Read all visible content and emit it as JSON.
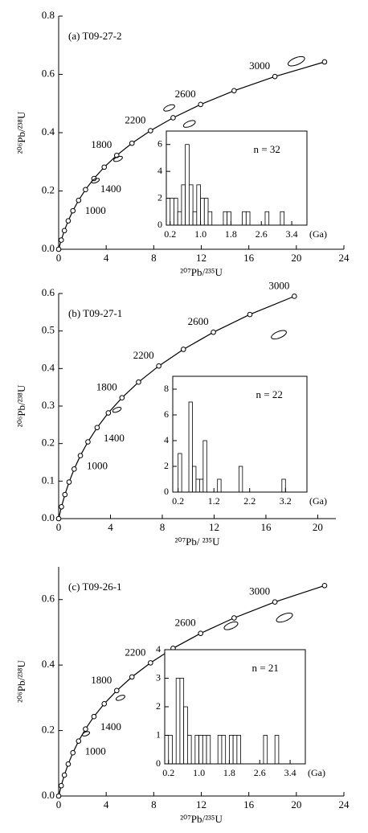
{
  "chart_data": [
    {
      "type": "concordia",
      "title": "(a) T09-27-2",
      "xlabel": "²⁰⁷Pb/²³⁵U",
      "ylabel": "²⁰⁶Pb/²³⁸U",
      "xlim": [
        0,
        24
      ],
      "ylim": [
        0,
        0.8
      ],
      "xticks": [
        0,
        4,
        8,
        12,
        16,
        20,
        24
      ],
      "yticks": [
        {
          "value": 0,
          "label": "0.0"
        },
        0.2,
        0.4,
        0.6,
        0.8
      ],
      "concordia": {
        "ages": [
          0,
          200,
          400,
          600,
          800,
          1000,
          1200,
          1400,
          1600,
          1800,
          2000,
          2200,
          2400,
          2600,
          2800,
          3000,
          3200
        ],
        "x": [
          0,
          0.2177,
          0.4828,
          0.8055,
          1.1987,
          1.6774,
          2.2604,
          2.9703,
          3.8347,
          4.8873,
          6.169,
          7.7298,
          9.63,
          11.945,
          14.763,
          18.194,
          22.373
        ],
        "y": [
          0,
          0.0315,
          0.064,
          0.0975,
          0.1321,
          0.1678,
          0.2046,
          0.2426,
          0.2817,
          0.3221,
          0.3638,
          0.4068,
          0.4511,
          0.4968,
          0.544,
          0.5926,
          0.6428
        ]
      },
      "age_labels": [
        1000,
        1400,
        1800,
        2200,
        2600,
        3000
      ],
      "ellipses": {
        "x": [
          20,
          9.3,
          11,
          5,
          3.1
        ],
        "y": [
          0.645,
          0.485,
          0.43,
          0.31,
          0.235
        ]
      }
    },
    {
      "type": "histogram",
      "annotation": "n = 32",
      "xlabel": "(Ga)",
      "xlim": [
        0.1,
        3.8
      ],
      "ylim": [
        0,
        7
      ],
      "xticks": [
        0.2,
        {
          "value": 1,
          "label": "1.0"
        },
        1.8,
        2.6,
        3.4
      ],
      "yticks": [
        0,
        2,
        4,
        6
      ],
      "bins": [
        0.2,
        0.3,
        0.4,
        0.5,
        0.6,
        0.7,
        0.8,
        0.9,
        1.0,
        1.1,
        1.2,
        1.3,
        1.4,
        1.5,
        1.6,
        1.7,
        1.8,
        1.9,
        2.0,
        2.1,
        2.2,
        2.3,
        2.4,
        2.5,
        2.6,
        2.7,
        2.8,
        2.9,
        3.0,
        3.1,
        3.2,
        3.3,
        3.4
      ],
      "counts": [
        2,
        2,
        1,
        3,
        6,
        3,
        1,
        3,
        2,
        2,
        1,
        0,
        0,
        0,
        1,
        1,
        0,
        0,
        0,
        1,
        1,
        0,
        0,
        0,
        0,
        1,
        0,
        0,
        0,
        1,
        0,
        0
      ]
    },
    {
      "type": "concordia",
      "title": "(b) T09-27-1",
      "xlabel": "²⁰⁷Pb/ ²³⁵U",
      "ylabel": "²⁰⁶Pb/²³⁸U",
      "xlim": [
        0,
        21.4
      ],
      "ylim": [
        0,
        0.6
      ],
      "xticks": [
        0,
        4,
        8,
        12,
        16,
        20
      ],
      "yticks": [
        {
          "value": 0,
          "label": "0.0"
        },
        0.1,
        0.2,
        0.3,
        0.4,
        0.5,
        0.6
      ],
      "concordia": {
        "ages": [
          0,
          200,
          400,
          600,
          800,
          1000,
          1200,
          1400,
          1600,
          1800,
          2000,
          2200,
          2400,
          2600,
          2800,
          3000
        ],
        "x": [
          0,
          0.2177,
          0.4828,
          0.8055,
          1.1987,
          1.6774,
          2.2604,
          2.9703,
          3.8347,
          4.8873,
          6.169,
          7.7298,
          9.63,
          11.945,
          14.763,
          18.194
        ],
        "y": [
          0,
          0.0315,
          0.064,
          0.0975,
          0.1321,
          0.1678,
          0.2046,
          0.2426,
          0.2817,
          0.3221,
          0.3638,
          0.4068,
          0.4511,
          0.4968,
          0.544,
          0.5926
        ]
      },
      "age_labels": [
        1000,
        1400,
        1800,
        2200,
        2600,
        3000
      ],
      "ellipses": {
        "x": [
          17,
          4.5
        ],
        "y": [
          0.49,
          0.29
        ]
      }
    },
    {
      "type": "histogram",
      "annotation": "n = 22",
      "xlabel": "(Ga)",
      "xlim": [
        0.05,
        3.8
      ],
      "ylim": [
        0,
        9
      ],
      "xticks": [
        0.2,
        1.2,
        2.2,
        3.2
      ],
      "yticks": [
        0,
        2,
        4,
        6,
        8
      ],
      "bins": [
        0.2,
        0.3,
        0.4,
        0.5,
        0.6,
        0.7,
        0.8,
        0.9,
        1.0,
        1.1,
        1.2,
        1.3,
        1.4,
        1.5,
        1.6,
        1.7,
        1.8,
        1.9,
        2.0,
        2.1,
        2.2,
        2.3,
        2.4,
        2.5,
        2.6,
        2.7,
        2.8,
        2.9,
        3.0,
        3.1,
        3.2,
        3.3,
        3.4,
        3.5,
        3.6
      ],
      "counts": [
        3,
        0,
        0,
        7,
        2,
        1,
        1,
        4,
        0,
        0,
        0,
        1,
        0,
        0,
        0,
        0,
        0,
        2,
        0,
        0,
        0,
        0,
        0,
        0,
        0,
        0,
        0,
        0,
        0,
        1,
        0,
        0,
        0,
        0
      ]
    },
    {
      "type": "concordia",
      "title": "(c) T09-26-1",
      "xlabel": "²⁰⁷Pb/²³⁵U",
      "ylabel": "²⁰⁶Pb/²³⁸U",
      "xlim": [
        0,
        24
      ],
      "ylim": [
        0,
        0.7
      ],
      "xticks": [
        0,
        4,
        8,
        12,
        16,
        20,
        24
      ],
      "yticks": [
        {
          "value": 0,
          "label": "0.0"
        },
        0.2,
        0.4,
        0.6
      ],
      "concordia": {
        "ages": [
          0,
          200,
          400,
          600,
          800,
          1000,
          1200,
          1400,
          1600,
          1800,
          2000,
          2200,
          2400,
          2600,
          2800,
          3000,
          3200
        ],
        "x": [
          0,
          0.2177,
          0.4828,
          0.8055,
          1.1987,
          1.6774,
          2.2604,
          2.9703,
          3.8347,
          4.8873,
          6.169,
          7.7298,
          9.63,
          11.945,
          14.763,
          18.194,
          22.373
        ],
        "y": [
          0,
          0.0315,
          0.064,
          0.0975,
          0.1321,
          0.1678,
          0.2046,
          0.2426,
          0.2817,
          0.3221,
          0.3638,
          0.4068,
          0.4511,
          0.4968,
          0.544,
          0.5926,
          0.6428
        ]
      },
      "age_labels": [
        1000,
        1400,
        1800,
        2200,
        2600,
        3000
      ],
      "ellipses": {
        "x": [
          19,
          14.5,
          5.2,
          2.3
        ],
        "y": [
          0.545,
          0.52,
          0.3,
          0.19
        ]
      }
    },
    {
      "type": "histogram",
      "annotation": "n = 21",
      "xlabel": "(Ga)",
      "xlim": [
        0.1,
        3.8
      ],
      "ylim": [
        0,
        4
      ],
      "xticks": [
        0.2,
        {
          "value": 1,
          "label": "1.0"
        },
        1.8,
        2.6,
        3.4
      ],
      "yticks": [
        0,
        1,
        2,
        3,
        4
      ],
      "bins": [
        0.2,
        0.3,
        0.4,
        0.5,
        0.6,
        0.7,
        0.8,
        0.9,
        1.0,
        1.1,
        1.2,
        1.3,
        1.4,
        1.5,
        1.6,
        1.7,
        1.8,
        1.9,
        2.0,
        2.1,
        2.2,
        2.3,
        2.4,
        2.5,
        2.6,
        2.7,
        2.8,
        2.9,
        3.0,
        3.1,
        3.2,
        3.3,
        3.4
      ],
      "counts": [
        1,
        0,
        3,
        3,
        2,
        1,
        0,
        1,
        1,
        1,
        1,
        0,
        0,
        1,
        1,
        0,
        1,
        1,
        1,
        0,
        0,
        0,
        0,
        0,
        0,
        1,
        0,
        0,
        1,
        0,
        0,
        0
      ]
    }
  ]
}
